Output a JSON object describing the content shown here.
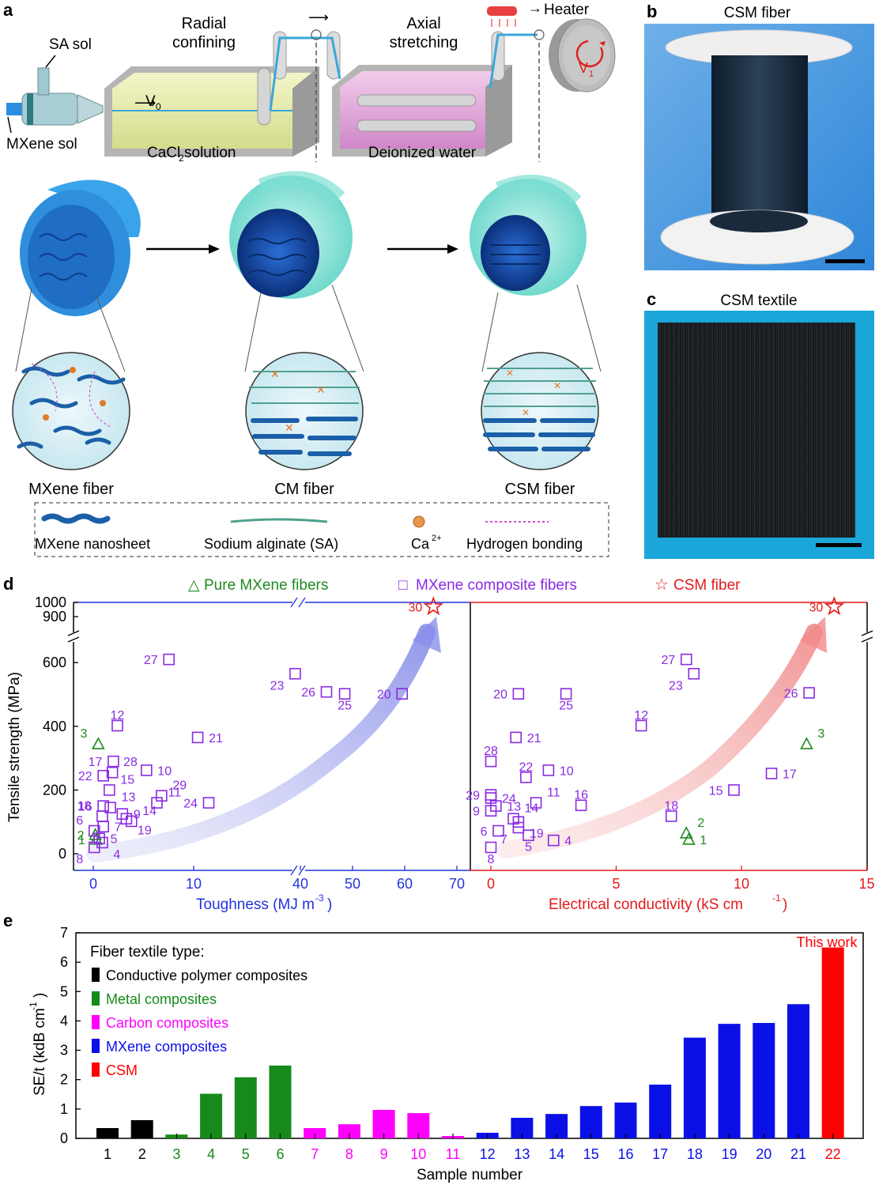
{
  "panels": {
    "a": {
      "letter": "a",
      "process": {
        "sa_sol": "SA sol",
        "mxene_sol": "MXene sol",
        "v0": "V",
        "v0_sub": "0",
        "radial_confining": "Radial confining",
        "axial_stretching": "Axial stretching",
        "heater": "Heater",
        "v1": "V",
        "v1_sub": "1",
        "bath1": "CaCl",
        "bath1_sub": "2",
        "bath1_tail": " solution",
        "bath2": "Deionized water"
      },
      "fibers": [
        "MXene fiber",
        "CM fiber",
        "CSM fiber"
      ],
      "legend": {
        "nanosheet": "MXene nanosheet",
        "sa": "Sodium alginate (SA)",
        "ca": "Ca",
        "ca_sup": "2+",
        "hbond": "Hydrogen bonding"
      }
    },
    "b": {
      "letter": "b",
      "title": "CSM fiber"
    },
    "c": {
      "letter": "c",
      "title": "CSM textile"
    },
    "d": {
      "letter": "d",
      "legend": [
        {
          "symbol": "△",
          "label": "Pure MXene fibers",
          "color": "#1f8a1f"
        },
        {
          "symbol": "□",
          "label": "MXene composite fibers",
          "color": "#8a2be2"
        },
        {
          "symbol": "☆",
          "label": "CSM fiber",
          "color": "#e31a1c"
        }
      ],
      "ylabel": "Tensile strength (MPa)",
      "left_xlabel": "Toughness (MJ m",
      "left_xlabel_sup": "-3",
      "left_xlabel_tail": ")",
      "right_xlabel": "Electrical conductivity (kS cm",
      "right_xlabel_sup": "-1",
      "right_xlabel_tail": ")"
    },
    "e": {
      "letter": "e",
      "ylabel": "SE/t (kdB cm",
      "ylabel_sup": "-1",
      "ylabel_tail": ")",
      "xlabel": "Sample number",
      "legend_title": "Fiber textile type:",
      "annotation": "This work"
    }
  },
  "chart_data": [
    {
      "type": "scatter",
      "panel": "d-left",
      "xlabel": "Toughness (MJ m-3)",
      "ylabel": "Tensile strength (MPa)",
      "xlim": [
        0,
        70
      ],
      "x_break": [
        12,
        40
      ],
      "ylim": [
        0,
        1000
      ],
      "y_break": [
        650,
        900
      ],
      "xticks": [
        0,
        10,
        40,
        50,
        60,
        70
      ],
      "yticks": [
        0,
        200,
        400,
        600,
        900,
        1000
      ],
      "color_pure": "#1f8a1f",
      "color_composite": "#8a2be2",
      "color_csm": "#e31a1c",
      "points": [
        {
          "id": "1",
          "kind": "pure",
          "x": 0.3,
          "y": 45,
          "lx": -1,
          "ly": 0
        },
        {
          "id": "2",
          "kind": "pure",
          "x": 0.2,
          "y": 60,
          "lx": -1,
          "ly": 0
        },
        {
          "id": "3",
          "kind": "pure",
          "x": 0.5,
          "y": 345,
          "lx": -1,
          "ly": -1
        },
        {
          "id": "4",
          "kind": "composite",
          "x": 0.9,
          "y": 35,
          "lx": 1,
          "ly": 1
        },
        {
          "id": "5",
          "kind": "composite",
          "x": 0.6,
          "y": 48,
          "lx": 1,
          "ly": 0
        },
        {
          "id": "6",
          "kind": "composite",
          "x": 0.1,
          "y": 72,
          "lx": -1,
          "ly": -1
        },
        {
          "id": "7",
          "kind": "composite",
          "x": 1.0,
          "y": 85,
          "lx": 1,
          "ly": 0
        },
        {
          "id": "8",
          "kind": "composite",
          "x": 0.1,
          "y": 20,
          "lx": -1,
          "ly": 1
        },
        {
          "id": "9",
          "kind": "composite",
          "x": 2.9,
          "y": 125,
          "lx": 1,
          "ly": 0
        },
        {
          "id": "10",
          "kind": "composite",
          "x": 5.3,
          "y": 262,
          "lx": 1,
          "ly": 0
        },
        {
          "id": "11",
          "kind": "composite",
          "x": 12.5,
          "y": 160,
          "lx": 1,
          "ly": -1
        },
        {
          "id": "12",
          "kind": "composite",
          "x": 2.4,
          "y": 402,
          "lx": 0,
          "ly": -1
        },
        {
          "id": "13",
          "kind": "composite",
          "x": 1.7,
          "y": 145,
          "lx": 1,
          "ly": -1
        },
        {
          "id": "14",
          "kind": "composite",
          "x": 3.8,
          "y": 102,
          "lx": 1,
          "ly": -1
        },
        {
          "id": "15",
          "kind": "composite",
          "x": 1.6,
          "y": 200,
          "lx": 1,
          "ly": -1
        },
        {
          "id": "16",
          "kind": "composite",
          "x": 1.0,
          "y": 150,
          "lx": -1,
          "ly": 0
        },
        {
          "id": "17",
          "kind": "composite",
          "x": 2.0,
          "y": 290,
          "lx": -1,
          "ly": 0
        },
        {
          "id": "18",
          "kind": "composite",
          "x": 0.9,
          "y": 118,
          "lx": -1,
          "ly": -1
        },
        {
          "id": "19",
          "kind": "composite",
          "x": 3.3,
          "y": 110,
          "lx": 1,
          "ly": 1
        },
        {
          "id": "20",
          "kind": "composite",
          "x": 59.5,
          "y": 502,
          "lx": -1,
          "ly": 0
        },
        {
          "id": "21",
          "kind": "composite",
          "x": 10.4,
          "y": 365,
          "lx": 1,
          "ly": 0
        },
        {
          "id": "22",
          "kind": "composite",
          "x": 1.0,
          "y": 245,
          "lx": -1,
          "ly": 0
        },
        {
          "id": "23",
          "kind": "composite",
          "x": 39.0,
          "y": 565,
          "lx": -1,
          "ly": 1
        },
        {
          "id": "24",
          "kind": "composite",
          "x": 11.5,
          "y": 160,
          "lx": -1,
          "ly": 0
        },
        {
          "id": "25",
          "kind": "composite",
          "x": 48.5,
          "y": 502,
          "lx": 0,
          "ly": 1
        },
        {
          "id": "26",
          "kind": "composite",
          "x": 45.0,
          "y": 508,
          "lx": -1,
          "ly": 0
        },
        {
          "id": "27",
          "kind": "composite",
          "x": 14.8,
          "y": 610,
          "lx": -1,
          "ly": 0
        },
        {
          "id": "28",
          "kind": "composite",
          "x": 1.9,
          "y": 255,
          "lx": 1,
          "ly": -1
        },
        {
          "id": "29",
          "kind": "composite",
          "x": 6.8,
          "y": 182,
          "lx": 1,
          "ly": -1
        },
        {
          "id": "30",
          "kind": "csm",
          "x": 65.5,
          "y": 970,
          "lx": -1,
          "ly": 0
        }
      ]
    },
    {
      "type": "scatter",
      "panel": "d-right",
      "xlabel": "Electrical conductivity (kS cm-1)",
      "ylabel": "Tensile strength (MPa)",
      "xlim": [
        0,
        15
      ],
      "ylim": [
        0,
        1000
      ],
      "y_break": [
        650,
        900
      ],
      "xticks": [
        0,
        5,
        10,
        15
      ],
      "points": [
        {
          "id": "1",
          "kind": "pure",
          "x": 7.9,
          "y": 45,
          "lx": 1,
          "ly": 0
        },
        {
          "id": "2",
          "kind": "pure",
          "x": 7.8,
          "y": 65,
          "lx": 1,
          "ly": -1
        },
        {
          "id": "3",
          "kind": "pure",
          "x": 12.6,
          "y": 345,
          "lx": 1,
          "ly": -1
        },
        {
          "id": "4",
          "kind": "composite",
          "x": 2.5,
          "y": 42,
          "lx": 1,
          "ly": 0
        },
        {
          "id": "5",
          "kind": "composite",
          "x": 1.5,
          "y": 58,
          "lx": 0,
          "ly": 1
        },
        {
          "id": "6",
          "kind": "composite",
          "x": 0.3,
          "y": 72,
          "lx": -1,
          "ly": 0
        },
        {
          "id": "7",
          "kind": "composite",
          "x": 1.1,
          "y": 82,
          "lx": -1,
          "ly": 1
        },
        {
          "id": "8",
          "kind": "composite",
          "x": 0.0,
          "y": 20,
          "lx": 0,
          "ly": 1
        },
        {
          "id": "9",
          "kind": "composite",
          "x": 0.0,
          "y": 135,
          "lx": -1,
          "ly": 0
        },
        {
          "id": "10",
          "kind": "composite",
          "x": 2.3,
          "y": 262,
          "lx": 1,
          "ly": 0
        },
        {
          "id": "11",
          "kind": "composite",
          "x": 1.8,
          "y": 160,
          "lx": 1,
          "ly": -1
        },
        {
          "id": "12",
          "kind": "composite",
          "x": 6.0,
          "y": 402,
          "lx": 0,
          "ly": -1
        },
        {
          "id": "13",
          "kind": "composite",
          "x": 0.2,
          "y": 150,
          "lx": 1,
          "ly": 0
        },
        {
          "id": "14",
          "kind": "composite",
          "x": 0.9,
          "y": 110,
          "lx": 1,
          "ly": -1
        },
        {
          "id": "15",
          "kind": "composite",
          "x": 9.7,
          "y": 200,
          "lx": -1,
          "ly": 0
        },
        {
          "id": "16",
          "kind": "composite",
          "x": 3.6,
          "y": 152,
          "lx": 0,
          "ly": -1
        },
        {
          "id": "17",
          "kind": "composite",
          "x": 11.2,
          "y": 252,
          "lx": 1,
          "ly": 0
        },
        {
          "id": "18",
          "kind": "composite",
          "x": 7.2,
          "y": 118,
          "lx": 0,
          "ly": -1
        },
        {
          "id": "19",
          "kind": "composite",
          "x": 1.1,
          "y": 100,
          "lx": 1,
          "ly": 1
        },
        {
          "id": "20",
          "kind": "composite",
          "x": 1.1,
          "y": 502,
          "lx": -1,
          "ly": 0
        },
        {
          "id": "21",
          "kind": "composite",
          "x": 1.0,
          "y": 365,
          "lx": 1,
          "ly": 0
        },
        {
          "id": "22",
          "kind": "composite",
          "x": 1.4,
          "y": 240,
          "lx": 0,
          "ly": -1
        },
        {
          "id": "23",
          "kind": "composite",
          "x": 8.1,
          "y": 565,
          "lx": -1,
          "ly": 1
        },
        {
          "id": "24",
          "kind": "composite",
          "x": 0.0,
          "y": 175,
          "lx": 1,
          "ly": 0
        },
        {
          "id": "25",
          "kind": "composite",
          "x": 3.0,
          "y": 502,
          "lx": 0,
          "ly": 1
        },
        {
          "id": "26",
          "kind": "composite",
          "x": 12.7,
          "y": 505,
          "lx": -1,
          "ly": 0
        },
        {
          "id": "27",
          "kind": "composite",
          "x": 7.8,
          "y": 610,
          "lx": -1,
          "ly": 0
        },
        {
          "id": "28",
          "kind": "composite",
          "x": 0.0,
          "y": 290,
          "lx": 0,
          "ly": -1
        },
        {
          "id": "29",
          "kind": "composite",
          "x": 0.0,
          "y": 185,
          "lx": -1,
          "ly": 0
        },
        {
          "id": "30",
          "kind": "csm",
          "x": 13.7,
          "y": 970,
          "lx": -1,
          "ly": 0
        }
      ]
    },
    {
      "type": "bar",
      "panel": "e",
      "xlabel": "Sample number",
      "ylabel": "SE/t (kdB cm-1)",
      "ylim": [
        0,
        7
      ],
      "yticks": [
        0,
        1,
        2,
        3,
        4,
        5,
        6,
        7
      ],
      "categories": [
        "1",
        "2",
        "3",
        "4",
        "5",
        "6",
        "7",
        "8",
        "9",
        "10",
        "11",
        "12",
        "13",
        "14",
        "15",
        "16",
        "17",
        "18",
        "19",
        "20",
        "21",
        "22"
      ],
      "values": [
        0.35,
        0.62,
        0.13,
        1.52,
        2.08,
        2.48,
        0.35,
        0.48,
        0.97,
        0.86,
        0.08,
        0.19,
        0.7,
        0.83,
        1.1,
        1.22,
        1.83,
        3.43,
        3.9,
        3.93,
        4.57,
        6.5
      ],
      "groups": [
        "polymer",
        "polymer",
        "metal",
        "metal",
        "metal",
        "metal",
        "carbon",
        "carbon",
        "carbon",
        "carbon",
        "carbon",
        "mxene",
        "mxene",
        "mxene",
        "mxene",
        "mxene",
        "mxene",
        "mxene",
        "mxene",
        "mxene",
        "mxene",
        "csm"
      ],
      "legend": [
        {
          "key": "polymer",
          "label": "Conductive polymer composites",
          "color": "#000000"
        },
        {
          "key": "metal",
          "label": "Metal composites",
          "color": "#168a1b"
        },
        {
          "key": "carbon",
          "label": "Carbon composites",
          "color": "#ff00ff"
        },
        {
          "key": "mxene",
          "label": "MXene composites",
          "color": "#0a10e6"
        },
        {
          "key": "csm",
          "label": "CSM",
          "color": "#ff0000"
        }
      ]
    }
  ]
}
